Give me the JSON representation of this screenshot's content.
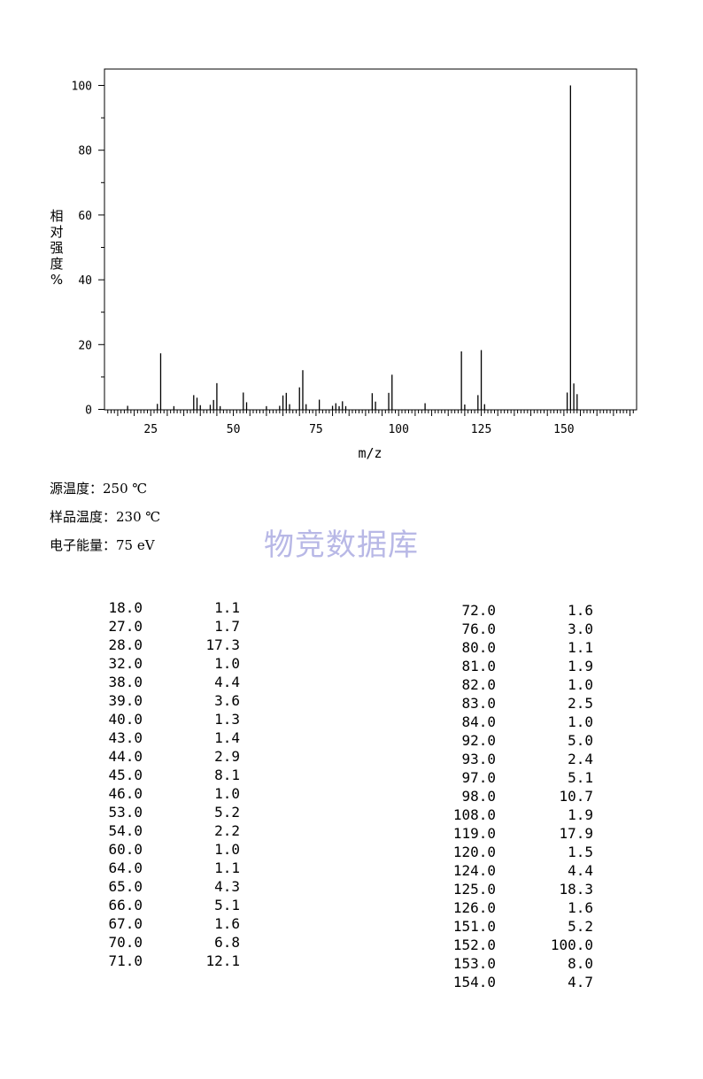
{
  "chart_data": {
    "type": "bar",
    "xlabel": "m/z",
    "ylabel": "相对强度%",
    "xlim": [
      11,
      172
    ],
    "ylim": [
      0,
      105
    ],
    "x_ticks": [
      25,
      50,
      75,
      100,
      125,
      150
    ],
    "y_ticks": [
      0,
      20,
      40,
      60,
      80,
      100
    ],
    "grid": false,
    "legend": "none",
    "peaks": [
      {
        "mz": 18.0,
        "abundance": 1.1
      },
      {
        "mz": 27.0,
        "abundance": 1.7
      },
      {
        "mz": 28.0,
        "abundance": 17.3
      },
      {
        "mz": 32.0,
        "abundance": 1.0
      },
      {
        "mz": 38.0,
        "abundance": 4.4
      },
      {
        "mz": 39.0,
        "abundance": 3.6
      },
      {
        "mz": 40.0,
        "abundance": 1.3
      },
      {
        "mz": 43.0,
        "abundance": 1.4
      },
      {
        "mz": 44.0,
        "abundance": 2.9
      },
      {
        "mz": 45.0,
        "abundance": 8.1
      },
      {
        "mz": 46.0,
        "abundance": 1.0
      },
      {
        "mz": 53.0,
        "abundance": 5.2
      },
      {
        "mz": 54.0,
        "abundance": 2.2
      },
      {
        "mz": 60.0,
        "abundance": 1.0
      },
      {
        "mz": 64.0,
        "abundance": 1.1
      },
      {
        "mz": 65.0,
        "abundance": 4.3
      },
      {
        "mz": 66.0,
        "abundance": 5.1
      },
      {
        "mz": 67.0,
        "abundance": 1.6
      },
      {
        "mz": 70.0,
        "abundance": 6.8
      },
      {
        "mz": 71.0,
        "abundance": 12.1
      },
      {
        "mz": 72.0,
        "abundance": 1.6
      },
      {
        "mz": 76.0,
        "abundance": 3.0
      },
      {
        "mz": 80.0,
        "abundance": 1.1
      },
      {
        "mz": 81.0,
        "abundance": 1.9
      },
      {
        "mz": 82.0,
        "abundance": 1.0
      },
      {
        "mz": 83.0,
        "abundance": 2.5
      },
      {
        "mz": 84.0,
        "abundance": 1.0
      },
      {
        "mz": 92.0,
        "abundance": 5.0
      },
      {
        "mz": 93.0,
        "abundance": 2.4
      },
      {
        "mz": 97.0,
        "abundance": 5.1
      },
      {
        "mz": 98.0,
        "abundance": 10.7
      },
      {
        "mz": 108.0,
        "abundance": 1.9
      },
      {
        "mz": 119.0,
        "abundance": 17.9
      },
      {
        "mz": 120.0,
        "abundance": 1.5
      },
      {
        "mz": 124.0,
        "abundance": 4.4
      },
      {
        "mz": 125.0,
        "abundance": 18.3
      },
      {
        "mz": 126.0,
        "abundance": 1.6
      },
      {
        "mz": 151.0,
        "abundance": 5.2
      },
      {
        "mz": 152.0,
        "abundance": 100.0
      },
      {
        "mz": 153.0,
        "abundance": 8.0
      },
      {
        "mz": 154.0,
        "abundance": 4.7
      }
    ]
  },
  "conditions": {
    "source_temp": "源温度：250 ℃",
    "sample_temp": "样品温度：230 ℃",
    "electron_energy": "电子能量：75 eV"
  },
  "watermark": "物竞数据库",
  "table_left": [
    [
      "18.0",
      "1.1"
    ],
    [
      "27.0",
      "1.7"
    ],
    [
      "28.0",
      "17.3"
    ],
    [
      "32.0",
      "1.0"
    ],
    [
      "38.0",
      "4.4"
    ],
    [
      "39.0",
      "3.6"
    ],
    [
      "40.0",
      "1.3"
    ],
    [
      "43.0",
      "1.4"
    ],
    [
      "44.0",
      "2.9"
    ],
    [
      "45.0",
      "8.1"
    ],
    [
      "46.0",
      "1.0"
    ],
    [
      "53.0",
      "5.2"
    ],
    [
      "54.0",
      "2.2"
    ],
    [
      "60.0",
      "1.0"
    ],
    [
      "64.0",
      "1.1"
    ],
    [
      "65.0",
      "4.3"
    ],
    [
      "66.0",
      "5.1"
    ],
    [
      "67.0",
      "1.6"
    ],
    [
      "70.0",
      "6.8"
    ],
    [
      "71.0",
      "12.1"
    ]
  ],
  "table_right": [
    [
      "72.0",
      "1.6"
    ],
    [
      "76.0",
      "3.0"
    ],
    [
      "80.0",
      "1.1"
    ],
    [
      "81.0",
      "1.9"
    ],
    [
      "82.0",
      "1.0"
    ],
    [
      "83.0",
      "2.5"
    ],
    [
      "84.0",
      "1.0"
    ],
    [
      "92.0",
      "5.0"
    ],
    [
      "93.0",
      "2.4"
    ],
    [
      "97.0",
      "5.1"
    ],
    [
      "98.0",
      "10.7"
    ],
    [
      "108.0",
      "1.9"
    ],
    [
      "119.0",
      "17.9"
    ],
    [
      "120.0",
      "1.5"
    ],
    [
      "124.0",
      "4.4"
    ],
    [
      "125.0",
      "18.3"
    ],
    [
      "126.0",
      "1.6"
    ],
    [
      "151.0",
      "5.2"
    ],
    [
      "152.0",
      "100.0"
    ],
    [
      "153.0",
      "8.0"
    ],
    [
      "154.0",
      "4.7"
    ]
  ]
}
